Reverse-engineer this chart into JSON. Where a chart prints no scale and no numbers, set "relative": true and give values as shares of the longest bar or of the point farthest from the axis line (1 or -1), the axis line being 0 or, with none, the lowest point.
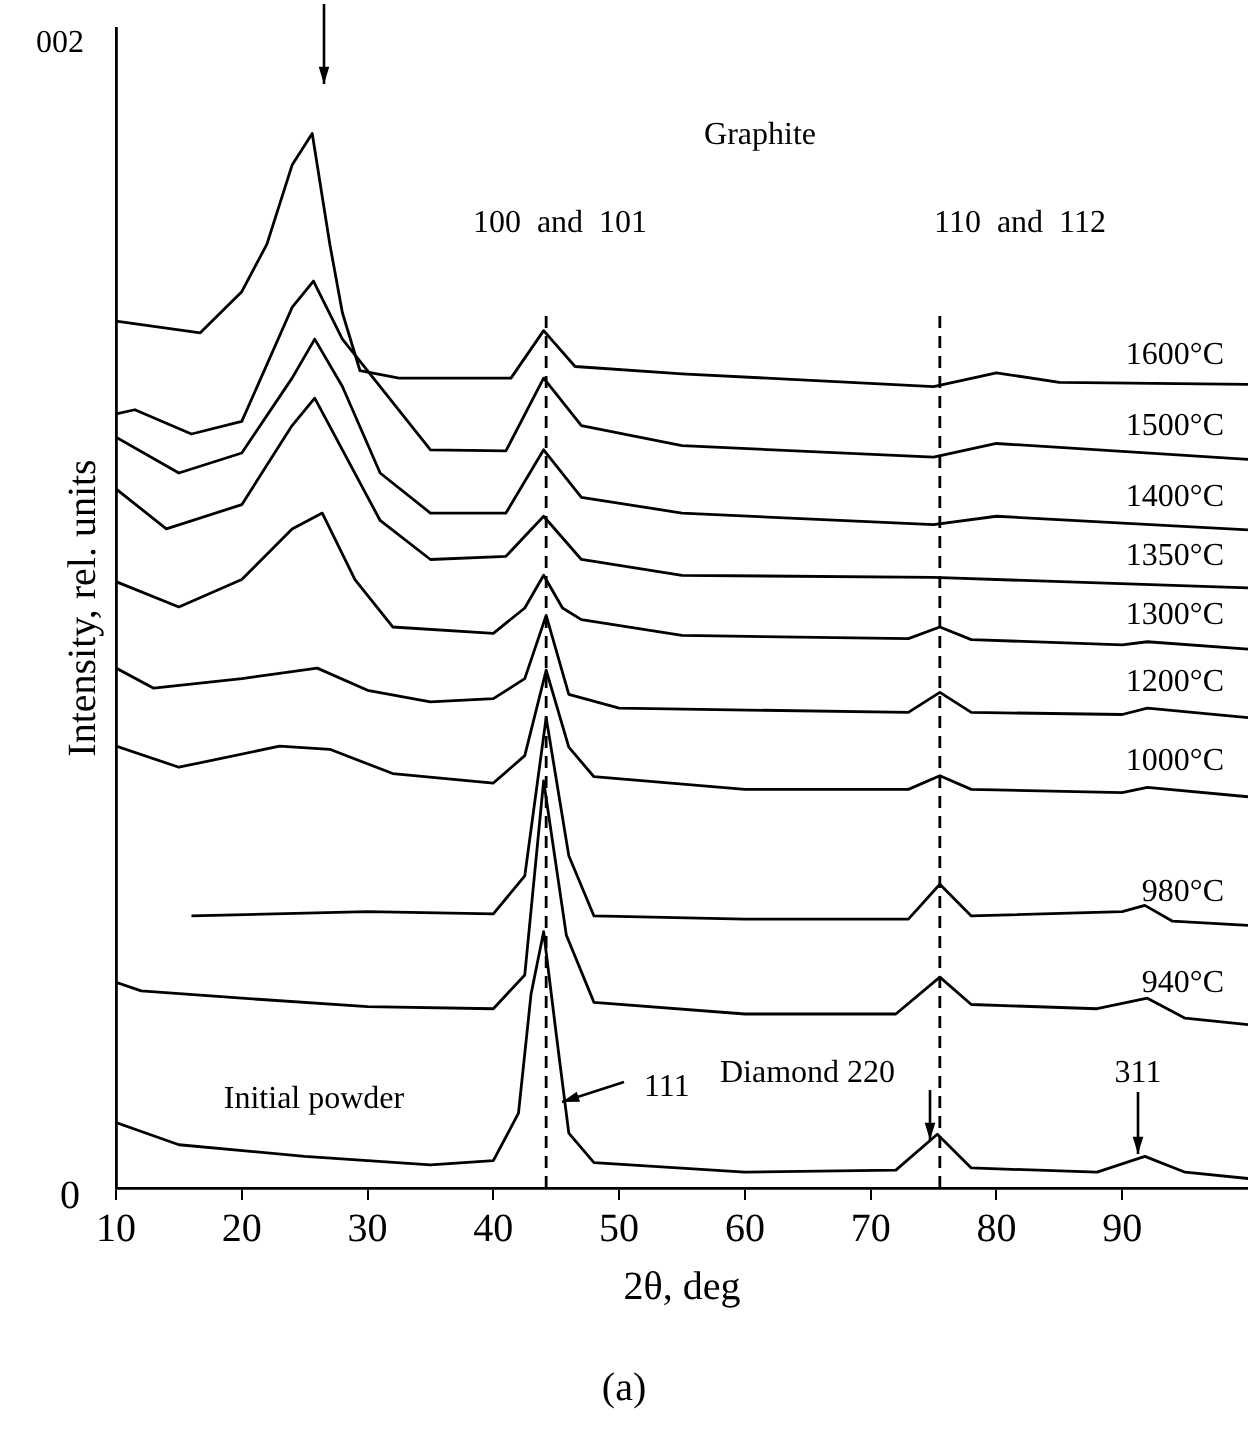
{
  "chart_data": {
    "type": "line",
    "relative": true,
    "xlabel": "2θ, deg",
    "ylabel": "Intensity, rel. units",
    "xlim": [
      10,
      100
    ],
    "xticks": [
      10,
      20,
      30,
      40,
      50,
      60,
      70,
      80,
      90
    ],
    "grid": false,
    "legend": false,
    "marker": "none",
    "line_style": "solid",
    "series": [
      {
        "name": "1600°C",
        "color": "#000000",
        "x": [
          10,
          16.7,
          20,
          22,
          24,
          25.6,
          27,
          28,
          29.4,
          32.5,
          41.4,
          44,
          46.5,
          55,
          75,
          80,
          85,
          100
        ],
        "values": [
          0.822,
          0.811,
          0.85,
          0.895,
          0.97,
          1.0,
          0.895,
          0.83,
          0.775,
          0.768,
          0.768,
          0.813,
          0.779,
          0.772,
          0.76,
          0.773,
          0.764,
          0.762
        ]
      },
      {
        "name": "1500°C",
        "color": "#000000",
        "x": [
          10,
          11.5,
          16,
          20,
          24,
          25.7,
          28,
          35,
          41,
          44,
          47,
          55,
          75,
          80,
          100
        ],
        "values": [
          0.734,
          0.738,
          0.715,
          0.727,
          0.835,
          0.86,
          0.805,
          0.7,
          0.699,
          0.768,
          0.723,
          0.704,
          0.693,
          0.706,
          0.691
        ]
      },
      {
        "name": "1400°C",
        "color": "#000000",
        "x": [
          10,
          15,
          20,
          24,
          25.8,
          28,
          31,
          35,
          41,
          44,
          47,
          55,
          75,
          80,
          100
        ],
        "values": [
          0.712,
          0.678,
          0.697,
          0.768,
          0.805,
          0.76,
          0.678,
          0.64,
          0.64,
          0.7,
          0.655,
          0.64,
          0.629,
          0.637,
          0.624
        ]
      },
      {
        "name": "1350°C",
        "color": "#000000",
        "x": [
          10,
          14,
          20,
          24,
          25.8,
          28,
          31,
          35,
          41,
          44,
          47,
          55,
          75,
          100
        ],
        "values": [
          0.663,
          0.625,
          0.648,
          0.723,
          0.749,
          0.7,
          0.633,
          0.596,
          0.599,
          0.637,
          0.596,
          0.581,
          0.579,
          0.569
        ]
      },
      {
        "name": "1300°C",
        "color": "#000000",
        "x": [
          10,
          15,
          20,
          24,
          26.4,
          29,
          32,
          40,
          42.5,
          44,
          45.5,
          47,
          55,
          73,
          75.5,
          78,
          90,
          92,
          100
        ],
        "values": [
          0.575,
          0.551,
          0.577,
          0.625,
          0.64,
          0.577,
          0.532,
          0.526,
          0.55,
          0.581,
          0.55,
          0.539,
          0.524,
          0.521,
          0.532,
          0.52,
          0.515,
          0.518,
          0.511
        ]
      },
      {
        "name": "1200°C",
        "color": "#000000",
        "x": [
          10,
          13,
          20,
          26,
          30,
          35,
          40,
          42.5,
          44.2,
          46,
          50,
          73,
          75.5,
          78,
          90,
          92,
          100
        ],
        "values": [
          0.493,
          0.474,
          0.483,
          0.493,
          0.472,
          0.461,
          0.464,
          0.483,
          0.543,
          0.468,
          0.455,
          0.451,
          0.47,
          0.451,
          0.449,
          0.455,
          0.446
        ]
      },
      {
        "name": "1000°C",
        "color": "#000000",
        "x": [
          10,
          15,
          23,
          27,
          32,
          40,
          42.5,
          44.2,
          46,
          48,
          60,
          73,
          75.5,
          78,
          90,
          92,
          100
        ],
        "values": [
          0.419,
          0.399,
          0.419,
          0.416,
          0.393,
          0.384,
          0.41,
          0.491,
          0.418,
          0.39,
          0.378,
          0.378,
          0.391,
          0.378,
          0.375,
          0.38,
          0.371
        ]
      },
      {
        "name": "980°C",
        "color": "#000000",
        "x": [
          16,
          30,
          40,
          42.5,
          44.2,
          46,
          48,
          60,
          73,
          75.5,
          78,
          90,
          91.8,
          94,
          100
        ],
        "values": [
          0.258,
          0.262,
          0.26,
          0.296,
          0.446,
          0.315,
          0.258,
          0.255,
          0.255,
          0.288,
          0.258,
          0.262,
          0.268,
          0.253,
          0.249
        ]
      },
      {
        "name": "940°C",
        "color": "#000000",
        "x": [
          10,
          12,
          20,
          30,
          40,
          42.5,
          44,
          45.8,
          48,
          60,
          72,
          75.5,
          78,
          88,
          92,
          95,
          100
        ],
        "values": [
          0.195,
          0.187,
          0.18,
          0.172,
          0.17,
          0.202,
          0.386,
          0.24,
          0.176,
          0.165,
          0.165,
          0.2,
          0.174,
          0.17,
          0.18,
          0.161,
          0.155
        ]
      },
      {
        "x": [
          10,
          15,
          25,
          35,
          40,
          42,
          43,
          44,
          45,
          46,
          48,
          60,
          72,
          75.3,
          78,
          88,
          91.8,
          95,
          100
        ],
        "color": "#000000",
        "values": [
          0.062,
          0.041,
          0.03,
          0.022,
          0.026,
          0.071,
          0.184,
          0.243,
          0.146,
          0.052,
          0.024,
          0.015,
          0.017,
          0.051,
          0.019,
          0.015,
          0.03,
          0.015,
          0.009
        ]
      }
    ],
    "ref_lines": [
      {
        "axis": "x",
        "value": 44.2,
        "color": "#000000",
        "line_style": "dashed"
      },
      {
        "axis": "x",
        "value": 75.5,
        "color": "#000000",
        "line_style": "dashed"
      }
    ],
    "annotations": [
      "002",
      "111",
      "Diamond 220",
      "311",
      "Graphite",
      "100  and  101",
      "110  and  112",
      "Initial powder",
      "0",
      "(a)"
    ]
  }
}
